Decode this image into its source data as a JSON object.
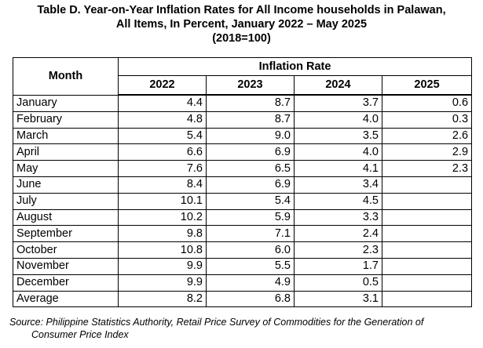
{
  "title": {
    "line1": "Table D. Year-on-Year Inflation Rates for All Income households in Palawan,",
    "line2": "All Items, In Percent, January 2022 – May 2025",
    "line3": "(2018=100)"
  },
  "table": {
    "month_header": "Month",
    "group_header": "Inflation Rate",
    "years": [
      "2022",
      "2023",
      "2024",
      "2025"
    ],
    "rows": [
      {
        "month": "January",
        "values": [
          "4.4",
          "8.7",
          "3.7",
          "0.6"
        ]
      },
      {
        "month": "February",
        "values": [
          "4.8",
          "8.7",
          "4.0",
          "0.3"
        ]
      },
      {
        "month": "March",
        "values": [
          "5.4",
          "9.0",
          "3.5",
          "2.6"
        ]
      },
      {
        "month": "April",
        "values": [
          "6.6",
          "6.9",
          "4.0",
          "2.9"
        ]
      },
      {
        "month": "May",
        "values": [
          "7.6",
          "6.5",
          "4.1",
          "2.3"
        ]
      },
      {
        "month": "June",
        "values": [
          "8.4",
          "6.9",
          "3.4",
          ""
        ]
      },
      {
        "month": "July",
        "values": [
          "10.1",
          "5.4",
          "4.5",
          ""
        ]
      },
      {
        "month": "August",
        "values": [
          "10.2",
          "5.9",
          "3.3",
          ""
        ]
      },
      {
        "month": "September",
        "values": [
          "9.8",
          "7.1",
          "2.4",
          ""
        ]
      },
      {
        "month": "October",
        "values": [
          "10.8",
          "6.0",
          "2.3",
          ""
        ]
      },
      {
        "month": "November",
        "values": [
          "9.9",
          "5.5",
          "1.7",
          ""
        ]
      },
      {
        "month": "December",
        "values": [
          "9.9",
          "4.9",
          "0.5",
          ""
        ]
      },
      {
        "month": "Average",
        "values": [
          "8.2",
          "6.8",
          "3.1",
          ""
        ]
      }
    ]
  },
  "source": {
    "line1": "Source: Philippine Statistics Authority, Retail Price Survey of Commodities for the Generation of",
    "line2": "Consumer Price Index"
  }
}
